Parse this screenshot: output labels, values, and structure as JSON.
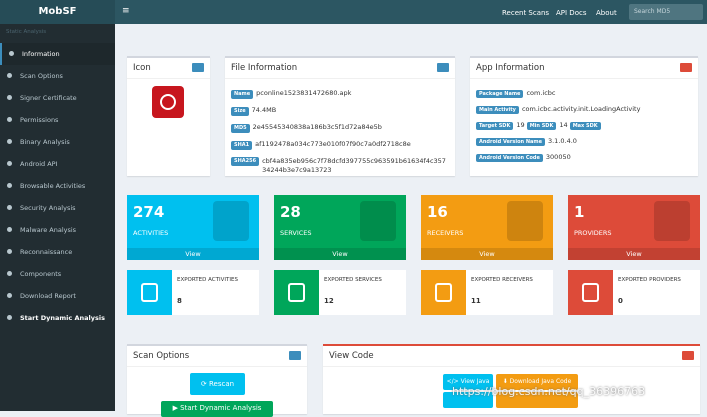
{
  "navbar": {
    "brand": "MobSF",
    "links": [
      "Recent Scans",
      "API Docs",
      "About"
    ],
    "search_placeholder": "Search MD5"
  },
  "sidebar": {
    "header": "Static Analysis",
    "items": [
      "Information",
      "Scan Options",
      "Signer Certificate",
      "Permissions",
      "Binary Analysis",
      "Android API",
      "Browsable Activities",
      "Security Analysis",
      "Malware Analysis",
      "Reconnaissance",
      "Components",
      "Download Report",
      "Start Dynamic Analysis"
    ]
  },
  "icon_panel": {
    "title": "Icon"
  },
  "file_info": {
    "title": "File Information",
    "rows": [
      [
        "Name",
        "pconline1523831472680.apk"
      ],
      [
        "Size",
        "74.4MB"
      ],
      [
        "MD5",
        "2e45545340838a186b3c5f1d72a84e5b"
      ],
      [
        "SHA1",
        "af1192478a034c773e010f07f90c7a0df2718c8e"
      ],
      [
        "SHA256",
        "cbf4a835eb956c7f78dcfd397755c963591b61634f4c35734244b3e7c9a13723"
      ]
    ]
  },
  "app_info": {
    "title": "App Information",
    "package_label": "Package Name",
    "package": "com.icbc",
    "main_label": "Main Activity",
    "main": "com.icbc.activity.init.LoadingActivity",
    "target_label": "Target SDK",
    "target": "19",
    "min_label": "Min SDK",
    "min": "14",
    "max_label": "Max SDK",
    "vname_label": "Android Version Name",
    "vname": "3.1.0.4.0",
    "vcode_label": "Android Version Code",
    "vcode": "300050"
  },
  "stats": [
    {
      "count": "274",
      "label": "ACTIVITIES",
      "link": "View"
    },
    {
      "count": "28",
      "label": "SERVICES",
      "link": "View"
    },
    {
      "count": "16",
      "label": "RECEIVERS",
      "link": "View"
    },
    {
      "count": "1",
      "label": "PROVIDERS",
      "link": "View"
    }
  ],
  "exported": [
    {
      "label": "EXPORTED ACTIVITIES",
      "count": "8"
    },
    {
      "label": "EXPORTED SERVICES",
      "count": "12"
    },
    {
      "label": "EXPORTED RECEIVERS",
      "count": "11"
    },
    {
      "label": "EXPORTED PROVIDERS",
      "count": "0"
    }
  ],
  "scan_options": {
    "title": "Scan Options",
    "rescan": "Rescan",
    "dynamic": "Start Dynamic Analysis"
  },
  "view_code": {
    "title": "View Code",
    "java": "View Java",
    "download": "Download Java Code"
  },
  "watermark": "https://blog.csdn.net/qq_36396763"
}
